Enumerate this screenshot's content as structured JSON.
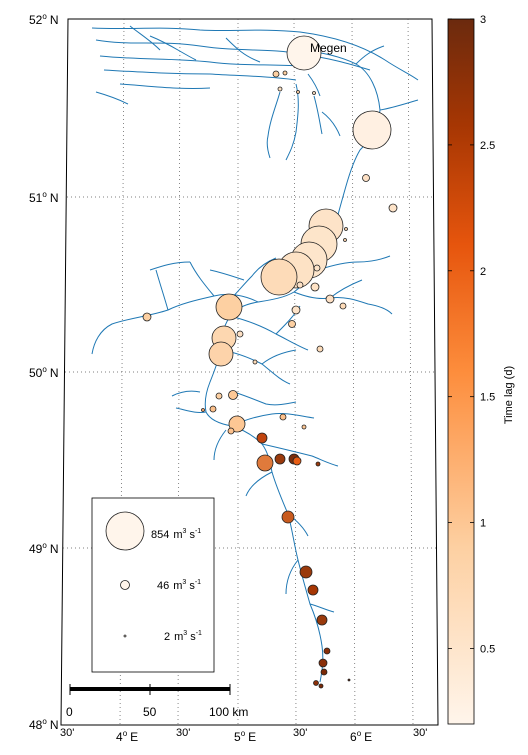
{
  "map": {
    "lat_labels": [
      {
        "deg": "52",
        "hem": "N"
      },
      {
        "deg": "51",
        "hem": "N"
      },
      {
        "deg": "50",
        "hem": "N"
      },
      {
        "deg": "49",
        "hem": "N"
      },
      {
        "deg": "48",
        "hem": "N"
      }
    ],
    "lon_labels": [
      {
        "text": "30'"
      },
      {
        "deg": "4",
        "hem": "E"
      },
      {
        "text": "30'"
      },
      {
        "deg": "5",
        "hem": "E"
      },
      {
        "text": "30'"
      },
      {
        "deg": "6",
        "hem": "E"
      },
      {
        "text": "30'"
      }
    ],
    "place_label": "Megen",
    "scale_bar": {
      "labels": [
        "0",
        "50",
        "100 km"
      ]
    },
    "legend": {
      "entries": [
        {
          "value": "854",
          "unit_a": "m",
          "exp_a": "3",
          "unit_b": "s",
          "exp_b": "-1"
        },
        {
          "value": "46",
          "unit_a": "m",
          "exp_a": "3",
          "unit_b": "s",
          "exp_b": "-1"
        },
        {
          "value": "2",
          "unit_a": "m",
          "exp_a": "3",
          "unit_b": "s",
          "exp_b": "-1"
        }
      ]
    },
    "colorbar": {
      "label": "Time lag (d)",
      "ticks": [
        "3",
        "2.5",
        "2",
        "1.5",
        "1",
        "0.5"
      ],
      "min": 0.2,
      "max": 3.0,
      "colors": [
        "#fff5eb",
        "#fdd0a2",
        "#fd8d3c",
        "#e6550d",
        "#a63603",
        "#6b2a0e"
      ]
    },
    "river_color": "#1f78b4"
  }
}
